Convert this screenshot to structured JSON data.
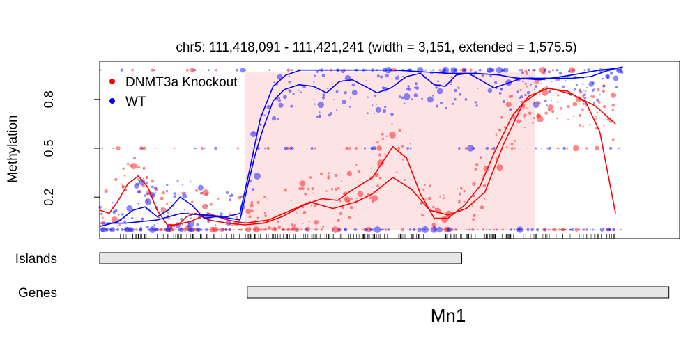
{
  "chart_data": {
    "type": "scatter",
    "title": "chr5: 111,418,091 - 111,421,241 (width = 3,151, extended = 1,575.5)",
    "ylabel": "Methylation",
    "xlim": [
      111416516,
      111422816
    ],
    "ylim": [
      0,
      1
    ],
    "y_ticks": [
      {
        "value": 0.2,
        "label": "0.2"
      },
      {
        "value": 0.5,
        "label": "0.5"
      },
      {
        "value": 0.8,
        "label": "0.8"
      }
    ],
    "grid": false,
    "legend_position": "top-left",
    "highlight_region": {
      "x_start": 111418091,
      "x_end": 111421241,
      "color": "#fde3e4"
    },
    "series": [
      {
        "name": "DNMT3a Knockout",
        "color": "#ff0000",
        "smooth_lines": [
          [
            [
              111416516,
              0.12
            ],
            [
              111416620,
              0.1
            ],
            [
              111416720,
              0.18
            ],
            [
              111416820,
              0.28
            ],
            [
              111416935,
              0.33
            ],
            [
              111417040,
              0.26
            ],
            [
              111417140,
              0.12
            ],
            [
              111417250,
              0.03
            ],
            [
              111417370,
              0.03
            ],
            [
              111417460,
              0.08
            ],
            [
              111417560,
              0.1
            ],
            [
              111417700,
              0.06
            ],
            [
              111417900,
              0.04
            ],
            [
              111418090,
              0.03
            ],
            [
              111418300,
              0.04
            ],
            [
              111418500,
              0.08
            ],
            [
              111418730,
              0.15
            ],
            [
              111418930,
              0.19
            ],
            [
              111419100,
              0.18
            ],
            [
              111419250,
              0.24
            ],
            [
              111419480,
              0.32
            ],
            [
              111419700,
              0.51
            ],
            [
              111419850,
              0.44
            ],
            [
              111420000,
              0.22
            ],
            [
              111420150,
              0.07
            ],
            [
              111420300,
              0.07
            ],
            [
              111420480,
              0.15
            ],
            [
              111420650,
              0.27
            ],
            [
              111420800,
              0.47
            ],
            [
              111421000,
              0.7
            ],
            [
              111421180,
              0.82
            ],
            [
              111421400,
              0.87
            ],
            [
              111421650,
              0.83
            ],
            [
              111421900,
              0.76
            ],
            [
              111422120,
              0.65
            ]
          ],
          [
            [
              111417250,
              0.02
            ],
            [
              111417500,
              0.05
            ],
            [
              111417700,
              0.1
            ],
            [
              111417900,
              0.06
            ],
            [
              111418100,
              0.04
            ],
            [
              111418350,
              0.06
            ],
            [
              111418600,
              0.12
            ],
            [
              111418800,
              0.17
            ],
            [
              111419050,
              0.13
            ],
            [
              111419300,
              0.17
            ],
            [
              111419480,
              0.22
            ],
            [
              111419700,
              0.32
            ],
            [
              111419900,
              0.25
            ],
            [
              111420100,
              0.12
            ],
            [
              111420300,
              0.09
            ],
            [
              111420500,
              0.13
            ],
            [
              111420700,
              0.23
            ],
            [
              111420900,
              0.52
            ],
            [
              111421120,
              0.78
            ],
            [
              111421350,
              0.87
            ],
            [
              111421600,
              0.85
            ],
            [
              111421800,
              0.78
            ],
            [
              111421950,
              0.6
            ],
            [
              111422120,
              0.1
            ]
          ]
        ]
      },
      {
        "name": "WT",
        "color": "#0000ff",
        "smooth_lines": [
          [
            [
              111416516,
              0.02
            ],
            [
              111416720,
              0.05
            ],
            [
              111416880,
              0.12
            ],
            [
              111417010,
              0.14
            ],
            [
              111417140,
              0.08
            ],
            [
              111417260,
              0.12
            ],
            [
              111417390,
              0.2
            ],
            [
              111417520,
              0.15
            ],
            [
              111417650,
              0.07
            ],
            [
              111417780,
              0.08
            ],
            [
              111417930,
              0.07
            ],
            [
              111418040,
              0.06
            ],
            [
              111418120,
              0.26
            ],
            [
              111418200,
              0.45
            ],
            [
              111418280,
              0.6
            ],
            [
              111418400,
              0.79
            ],
            [
              111418520,
              0.86
            ],
            [
              111418680,
              0.89
            ],
            [
              111418840,
              0.88
            ],
            [
              111418980,
              0.84
            ],
            [
              111419120,
              0.91
            ],
            [
              111419260,
              0.92
            ],
            [
              111419400,
              0.88
            ],
            [
              111419530,
              0.84
            ],
            [
              111419680,
              0.87
            ],
            [
              111419850,
              0.94
            ],
            [
              111420000,
              0.96
            ],
            [
              111420150,
              0.89
            ],
            [
              111420270,
              0.88
            ],
            [
              111420390,
              0.95
            ],
            [
              111420520,
              0.96
            ],
            [
              111420650,
              0.92
            ],
            [
              111420800,
              0.87
            ],
            [
              111420950,
              0.9
            ],
            [
              111421100,
              0.93
            ],
            [
              111421270,
              0.93
            ],
            [
              111421450,
              0.93
            ],
            [
              111421650,
              0.93
            ],
            [
              111421850,
              0.94
            ],
            [
              111422050,
              0.98
            ],
            [
              111422200,
              1.0
            ]
          ],
          [
            [
              111416516,
              0.04
            ],
            [
              111416800,
              0.04
            ],
            [
              111417140,
              0.06
            ],
            [
              111417400,
              0.1
            ],
            [
              111417650,
              0.09
            ],
            [
              111417900,
              0.08
            ],
            [
              111418040,
              0.1
            ],
            [
              111418150,
              0.38
            ],
            [
              111418260,
              0.68
            ],
            [
              111418400,
              0.88
            ],
            [
              111418540,
              0.95
            ],
            [
              111418700,
              0.98
            ],
            [
              111418900,
              0.98
            ],
            [
              111419100,
              0.98
            ],
            [
              111419400,
              0.98
            ],
            [
              111419700,
              0.98
            ],
            [
              111420000,
              0.97
            ],
            [
              111420300,
              0.96
            ],
            [
              111420600,
              0.96
            ],
            [
              111420850,
              0.95
            ],
            [
              111421050,
              0.93
            ],
            [
              111421300,
              0.92
            ],
            [
              111421650,
              0.95
            ],
            [
              111421950,
              0.98
            ],
            [
              111422120,
              0.99
            ]
          ]
        ]
      }
    ],
    "tracks": [
      {
        "label": "Islands",
        "features": [
          {
            "x_start": 111416516,
            "x_end": 111420450,
            "label": ""
          }
        ]
      },
      {
        "label": "Genes",
        "features": [
          {
            "x_start": 111418120,
            "x_end": 111422700,
            "label": "Mn1"
          }
        ]
      }
    ]
  }
}
